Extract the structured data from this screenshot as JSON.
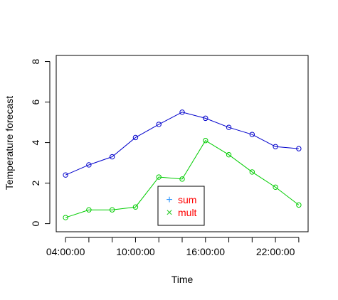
{
  "chart_data": {
    "type": "line",
    "title": "",
    "xlabel": "Time",
    "ylabel": "Temperature forecast",
    "ylim": [
      -0.4,
      8.3
    ],
    "x": [
      0,
      1,
      2,
      3,
      4,
      5,
      6,
      7,
      8,
      9,
      10
    ],
    "xlim": [
      -0.4,
      10.4
    ],
    "x_ticks": [
      {
        "pos": 0,
        "label": "04:00:00"
      },
      {
        "pos": 1,
        "label": ""
      },
      {
        "pos": 2,
        "label": ""
      },
      {
        "pos": 3,
        "label": "10:00:00"
      },
      {
        "pos": 4,
        "label": ""
      },
      {
        "pos": 5,
        "label": ""
      },
      {
        "pos": 6,
        "label": "16:00:00"
      },
      {
        "pos": 7,
        "label": ""
      },
      {
        "pos": 8,
        "label": ""
      },
      {
        "pos": 9,
        "label": "22:00:00"
      },
      {
        "pos": 10,
        "label": ""
      }
    ],
    "y_ticks": [
      0,
      2,
      4,
      6,
      8
    ],
    "y_tick_labels": [
      "0",
      "2",
      "4",
      "6",
      "8"
    ],
    "series": [
      {
        "name": "sum",
        "color": "#0000cc",
        "values": [
          2.4,
          2.9,
          3.3,
          4.25,
          4.9,
          5.5,
          5.2,
          4.75,
          4.4,
          3.8,
          3.7
        ]
      },
      {
        "name": "mult",
        "color": "#00cc00",
        "values": [
          0.3,
          0.68,
          0.68,
          0.82,
          2.3,
          2.2,
          4.1,
          3.4,
          2.55,
          1.8,
          0.92
        ]
      }
    ],
    "legend": {
      "position": "bottom-center",
      "entries": [
        {
          "label": "sum",
          "symbol": "+",
          "symbol_color": "#3399ff"
        },
        {
          "label": "mult",
          "symbol": "×",
          "symbol_color": "#33cc33"
        }
      ],
      "text_color": "#ff0000"
    }
  }
}
